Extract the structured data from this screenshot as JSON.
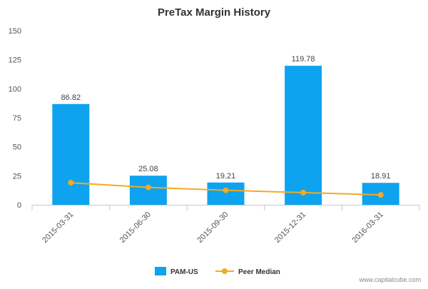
{
  "chart_data": {
    "type": "bar",
    "title": "PreTax Margin History",
    "categories": [
      "2015-03-31",
      "2015-06-30",
      "2015-09-30",
      "2015-12-31",
      "2016-03-31"
    ],
    "series": [
      {
        "name": "PAM-US",
        "type": "bar",
        "color": "#0ea3ef",
        "values": [
          86.82,
          25.08,
          19.21,
          119.78,
          18.91
        ],
        "labels": [
          "86.82",
          "25.08",
          "19.21",
          "119.78",
          "18.91"
        ]
      },
      {
        "name": "Peer Median",
        "type": "line",
        "color": "#f7a823",
        "values": [
          19.0,
          15.0,
          12.5,
          10.5,
          8.5
        ]
      }
    ],
    "ylim": [
      0,
      150
    ],
    "yticks": [
      "0",
      "25",
      "50",
      "75",
      "100",
      "125",
      "150"
    ],
    "grid": false,
    "legend_position": "bottom-center"
  },
  "credit": "www.capitalcube.com"
}
